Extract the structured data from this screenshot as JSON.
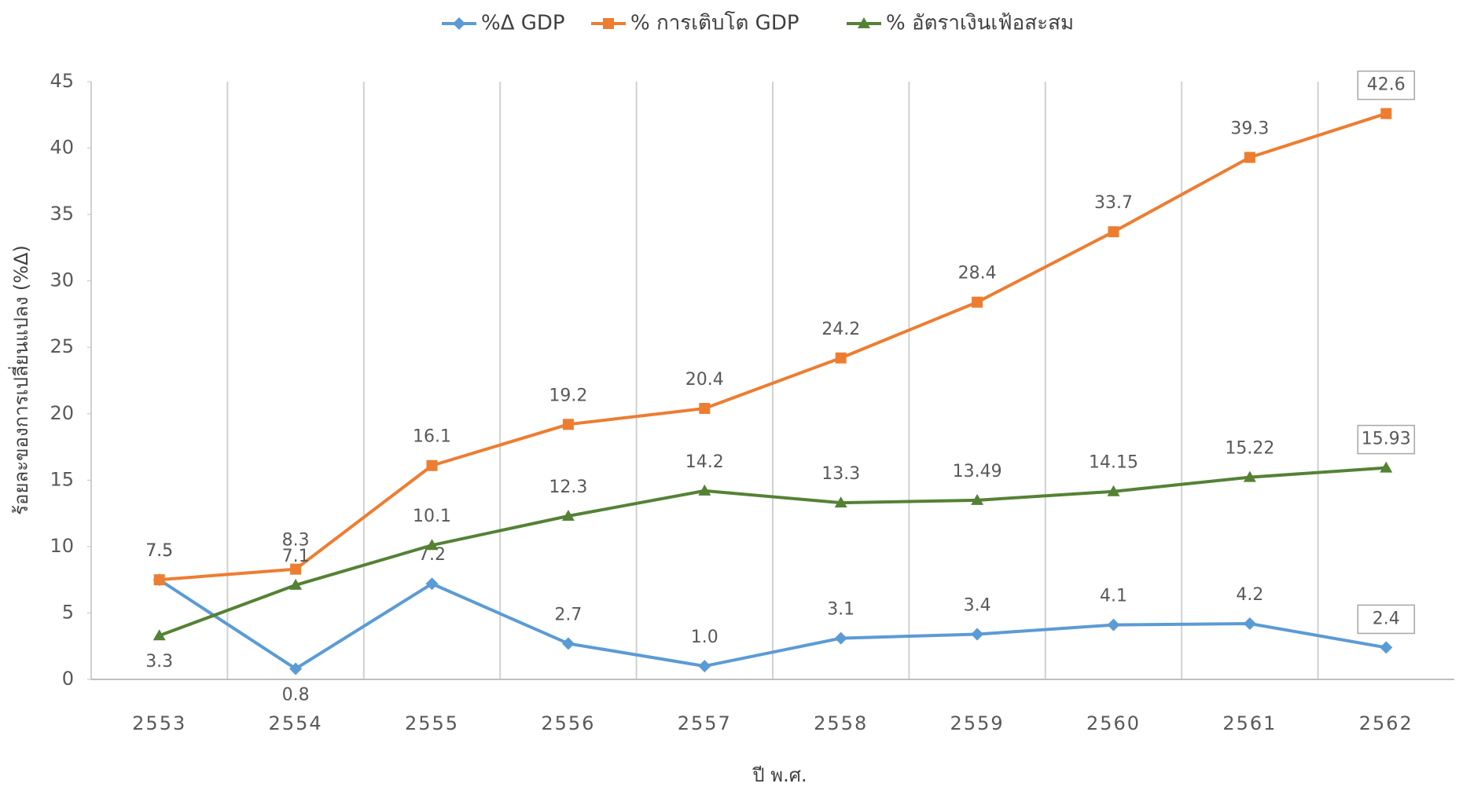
{
  "chart_data": {
    "type": "line",
    "categories": [
      "2553",
      "2554",
      "2555",
      "2556",
      "2557",
      "2558",
      "2559",
      "2560",
      "2561",
      "2562"
    ],
    "series": [
      {
        "name": "%Δ GDP",
        "color": "#5b9bd5",
        "marker": "diamond",
        "values": [
          7.5,
          0.8,
          7.2,
          2.7,
          1.0,
          3.1,
          3.4,
          4.1,
          4.2,
          2.4
        ],
        "value_labels": [
          "7.5",
          "0.8",
          "7.2",
          "2.7",
          "1.0",
          "3.1",
          "3.4",
          "4.1",
          "4.2",
          "2.4"
        ]
      },
      {
        "name": "% การเติบโต GDP",
        "color": "#ed7d31",
        "marker": "square",
        "values": [
          7.5,
          8.3,
          16.1,
          19.2,
          20.4,
          24.2,
          28.4,
          33.7,
          39.3,
          42.6
        ]
      },
      {
        "name": "% อัตราเงินเฟ้อสะสม",
        "color": "#548235",
        "marker": "triangle",
        "values": [
          3.3,
          7.1,
          10.1,
          12.3,
          14.2,
          13.3,
          13.49,
          14.15,
          15.22,
          15.93
        ]
      }
    ],
    "ylim": [
      0,
      45
    ],
    "yticks": [
      0,
      5,
      10,
      15,
      20,
      25,
      30,
      35,
      40,
      45
    ],
    "x_label": "ปี พ.ศ.",
    "y_label": "ร้อยละของการเปลี่ยนแปลง (%Δ)",
    "legend": "top"
  }
}
